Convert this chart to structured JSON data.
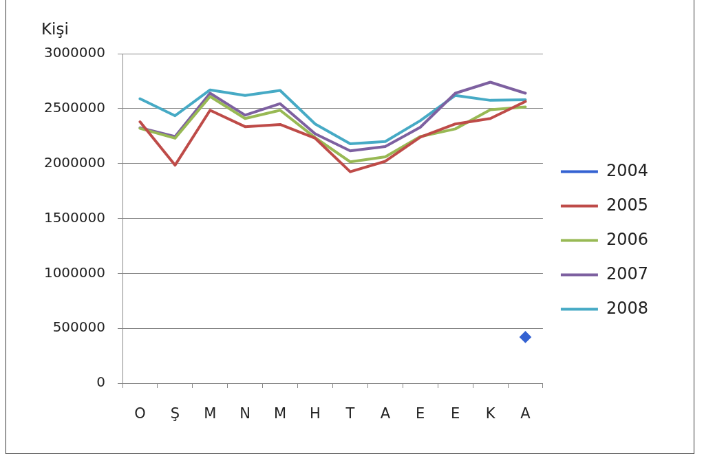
{
  "chart_data": {
    "type": "line",
    "ylabel": "Kişi",
    "categories": [
      "O",
      "Ş",
      "M",
      "N",
      "M",
      "H",
      "T",
      "A",
      "E",
      "E",
      "K",
      "A"
    ],
    "series": [
      {
        "name": "2004",
        "color": "#3462d2",
        "marker": "diamond",
        "values": [
          null,
          null,
          null,
          null,
          null,
          null,
          null,
          null,
          null,
          null,
          null,
          420000
        ]
      },
      {
        "name": "2005",
        "color": "#be4b48",
        "values": [
          2380000,
          1985000,
          2485000,
          2335000,
          2355000,
          2230000,
          1925000,
          2020000,
          2240000,
          2360000,
          2410000,
          2565000
        ]
      },
      {
        "name": "2006",
        "color": "#98b954",
        "values": [
          2320000,
          2230000,
          2610000,
          2410000,
          2485000,
          2235000,
          2015000,
          2060000,
          2245000,
          2315000,
          2490000,
          2515000
        ]
      },
      {
        "name": "2007",
        "color": "#7d60a0",
        "values": [
          2325000,
          2245000,
          2640000,
          2440000,
          2545000,
          2270000,
          2115000,
          2155000,
          2330000,
          2640000,
          2740000,
          2640000
        ]
      },
      {
        "name": "2008",
        "color": "#46aac5",
        "values": [
          2590000,
          2435000,
          2670000,
          2620000,
          2665000,
          2360000,
          2180000,
          2200000,
          2390000,
          2620000,
          2575000,
          2580000
        ]
      }
    ],
    "ylim": [
      0,
      3000000
    ],
    "yticks": [
      0,
      500000,
      1000000,
      1500000,
      2000000,
      2500000,
      3000000
    ],
    "grid": "y",
    "legend": "right",
    "marker": "none",
    "line_style": "solid"
  }
}
